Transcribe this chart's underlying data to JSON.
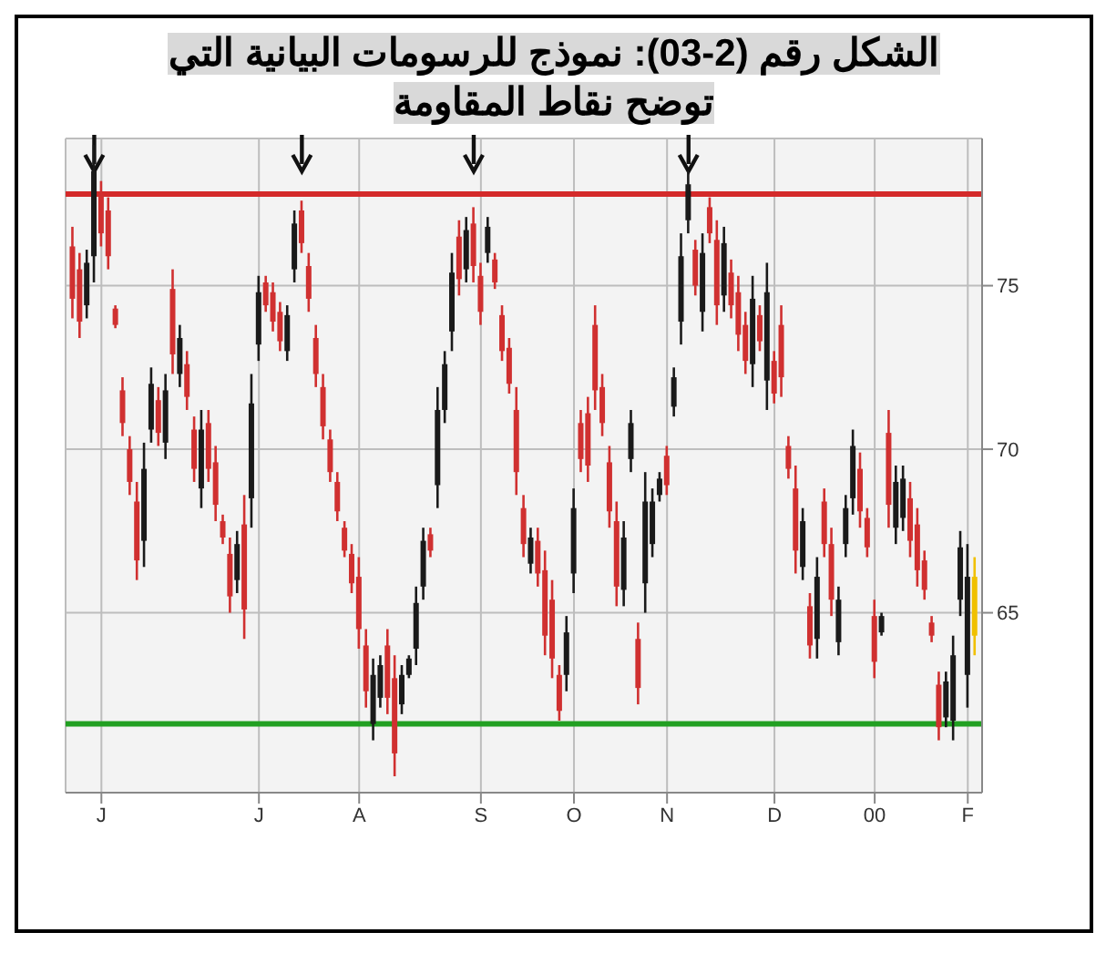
{
  "chart_data": {
    "type": "candlestick",
    "title": "الشكل رقم (2-03): نموذج للرسومات البيانية التي توضح نقاط المقاومة",
    "categories": [
      null,
      null,
      null,
      null,
      "J",
      null,
      null,
      null,
      null,
      null,
      null,
      null,
      null,
      null,
      null,
      null,
      null,
      null,
      null,
      null,
      null,
      null,
      null,
      null,
      null,
      null,
      "J",
      null,
      null,
      null,
      null,
      null,
      null,
      null,
      null,
      null,
      null,
      null,
      null,
      null,
      "A",
      null,
      null,
      null,
      null,
      null,
      null,
      null,
      null,
      null,
      null,
      null,
      null,
      null,
      null,
      null,
      null,
      "S",
      null,
      null,
      null,
      null,
      null,
      null,
      null,
      null,
      null,
      null,
      null,
      null,
      "O",
      null,
      null,
      null,
      null,
      null,
      null,
      null,
      null,
      null,
      null,
      null,
      null,
      "N",
      null,
      null,
      null,
      null,
      null,
      null,
      null,
      null,
      null,
      null,
      null,
      null,
      null,
      null,
      "D",
      null,
      null,
      null,
      null,
      null,
      null,
      null,
      null,
      null,
      null,
      null,
      null,
      null,
      "00",
      null,
      null,
      null,
      null,
      null,
      null,
      null,
      null,
      null,
      null,
      null,
      null,
      "F",
      null
    ],
    "ohlc": [
      [
        76.2,
        76.8,
        74.0,
        74.6
      ],
      [
        75.5,
        76.0,
        73.4,
        73.9
      ],
      [
        74.4,
        76.1,
        74.0,
        75.7
      ],
      [
        75.9,
        79.3,
        75.1,
        78.5
      ],
      [
        77.8,
        78.2,
        76.2,
        76.6
      ],
      [
        77.3,
        77.7,
        75.5,
        75.9
      ],
      [
        74.3,
        74.4,
        73.7,
        73.8
      ],
      [
        71.8,
        72.2,
        70.4,
        70.8
      ],
      [
        70.0,
        70.4,
        68.6,
        69.0
      ],
      [
        68.4,
        69.0,
        66.0,
        66.6
      ],
      [
        67.2,
        70.2,
        66.4,
        69.4
      ],
      [
        70.6,
        72.5,
        70.2,
        72.0
      ],
      [
        71.5,
        71.9,
        70.1,
        70.5
      ],
      [
        70.2,
        72.3,
        69.7,
        71.8
      ],
      [
        74.9,
        75.5,
        72.3,
        72.9
      ],
      [
        72.3,
        73.8,
        71.9,
        73.4
      ],
      [
        72.6,
        73.0,
        71.2,
        71.6
      ],
      [
        70.6,
        71.0,
        69.0,
        69.4
      ],
      [
        68.8,
        71.2,
        68.2,
        70.6
      ],
      [
        70.8,
        71.2,
        69.0,
        69.4
      ],
      [
        69.6,
        70.1,
        67.8,
        68.3
      ],
      [
        67.8,
        68.0,
        67.1,
        67.3
      ],
      [
        66.8,
        67.3,
        65.0,
        65.5
      ],
      [
        66.0,
        67.5,
        65.6,
        67.1
      ],
      [
        67.7,
        68.6,
        64.2,
        65.1
      ],
      [
        68.5,
        72.3,
        67.6,
        71.4
      ],
      [
        73.2,
        75.3,
        72.7,
        74.8
      ],
      [
        75.1,
        75.3,
        74.2,
        74.4
      ],
      [
        74.8,
        75.1,
        73.6,
        73.9
      ],
      [
        74.2,
        74.5,
        73.0,
        73.3
      ],
      [
        73.0,
        74.4,
        72.7,
        74.1
      ],
      [
        75.5,
        77.3,
        75.1,
        76.9
      ],
      [
        77.3,
        77.6,
        76.0,
        76.3
      ],
      [
        75.6,
        76.0,
        74.2,
        74.6
      ],
      [
        73.4,
        73.8,
        71.9,
        72.3
      ],
      [
        71.9,
        72.3,
        70.3,
        70.7
      ],
      [
        70.3,
        70.6,
        69.0,
        69.3
      ],
      [
        69.0,
        69.3,
        67.8,
        68.1
      ],
      [
        67.6,
        67.8,
        66.7,
        66.9
      ],
      [
        66.8,
        67.1,
        65.6,
        65.9
      ],
      [
        66.1,
        66.7,
        63.9,
        64.5
      ],
      [
        64.0,
        64.5,
        62.1,
        62.6
      ],
      [
        61.6,
        63.6,
        61.1,
        63.1
      ],
      [
        62.4,
        63.7,
        62.1,
        63.4
      ],
      [
        64.0,
        64.5,
        61.9,
        62.4
      ],
      [
        63.0,
        63.7,
        60.0,
        60.7
      ],
      [
        62.2,
        63.4,
        61.9,
        63.1
      ],
      [
        63.1,
        63.7,
        63.0,
        63.6
      ],
      [
        63.9,
        65.8,
        63.4,
        65.3
      ],
      [
        65.8,
        67.6,
        65.4,
        67.2
      ],
      [
        67.4,
        67.6,
        66.7,
        66.9
      ],
      [
        68.9,
        71.9,
        68.2,
        71.2
      ],
      [
        71.2,
        73.0,
        70.8,
        72.6
      ],
      [
        73.6,
        76.0,
        73.0,
        75.4
      ],
      [
        76.5,
        77.0,
        74.7,
        75.2
      ],
      [
        75.5,
        77.1,
        75.1,
        76.7
      ],
      [
        76.9,
        77.4,
        75.1,
        75.6
      ],
      [
        75.3,
        75.7,
        73.8,
        74.2
      ],
      [
        76.0,
        77.1,
        75.7,
        76.8
      ],
      [
        75.8,
        76.0,
        74.9,
        75.1
      ],
      [
        74.1,
        74.4,
        72.7,
        73.0
      ],
      [
        73.1,
        73.4,
        71.7,
        72.0
      ],
      [
        71.2,
        71.9,
        68.6,
        69.3
      ],
      [
        68.2,
        68.6,
        66.7,
        67.1
      ],
      [
        66.5,
        67.6,
        66.2,
        67.3
      ],
      [
        67.2,
        67.6,
        65.8,
        66.2
      ],
      [
        66.3,
        66.9,
        63.7,
        64.3
      ],
      [
        65.4,
        66.0,
        63.0,
        63.6
      ],
      [
        63.1,
        63.4,
        61.7,
        62.0
      ],
      [
        63.1,
        64.9,
        62.6,
        64.4
      ],
      [
        66.2,
        68.8,
        65.6,
        68.2
      ],
      [
        70.8,
        71.2,
        69.3,
        69.7
      ],
      [
        71.1,
        71.6,
        69.0,
        69.5
      ],
      [
        73.8,
        74.4,
        71.2,
        71.8
      ],
      [
        71.9,
        72.3,
        70.4,
        70.8
      ],
      [
        69.6,
        70.1,
        67.6,
        68.1
      ],
      [
        67.8,
        68.4,
        65.2,
        65.8
      ],
      [
        65.7,
        67.8,
        65.2,
        67.3
      ],
      [
        69.7,
        71.2,
        69.3,
        70.8
      ],
      [
        64.2,
        64.7,
        62.2,
        62.7
      ],
      [
        65.9,
        69.3,
        65.0,
        68.4
      ],
      [
        67.1,
        68.8,
        66.7,
        68.4
      ],
      [
        68.6,
        69.3,
        68.4,
        69.1
      ],
      [
        69.8,
        70.1,
        68.6,
        68.9
      ],
      [
        71.3,
        72.5,
        71.0,
        72.2
      ],
      [
        73.9,
        76.6,
        73.2,
        75.9
      ],
      [
        77.0,
        78.5,
        76.6,
        78.1
      ],
      [
        76.1,
        76.4,
        74.7,
        75.0
      ],
      [
        74.2,
        76.6,
        73.6,
        76.0
      ],
      [
        77.4,
        77.7,
        76.3,
        76.6
      ],
      [
        76.4,
        77.0,
        73.8,
        74.4
      ],
      [
        74.7,
        76.8,
        74.2,
        76.3
      ],
      [
        75.4,
        75.8,
        74.0,
        74.4
      ],
      [
        74.8,
        75.3,
        73.0,
        73.5
      ],
      [
        73.8,
        74.2,
        72.3,
        72.7
      ],
      [
        72.6,
        75.3,
        71.9,
        74.6
      ],
      [
        74.1,
        74.4,
        73.0,
        73.3
      ],
      [
        72.1,
        75.7,
        71.2,
        74.8
      ],
      [
        72.7,
        73.0,
        71.4,
        71.7
      ],
      [
        73.8,
        74.4,
        71.6,
        72.2
      ],
      [
        70.1,
        70.4,
        69.1,
        69.4
      ],
      [
        68.8,
        69.5,
        66.2,
        66.9
      ],
      [
        66.4,
        68.2,
        66.0,
        67.8
      ],
      [
        65.2,
        65.6,
        63.6,
        64.0
      ],
      [
        64.2,
        66.7,
        63.6,
        66.1
      ],
      [
        68.4,
        68.8,
        66.7,
        67.1
      ],
      [
        67.1,
        67.6,
        64.9,
        65.4
      ],
      [
        64.1,
        65.8,
        63.7,
        65.4
      ],
      [
        67.1,
        68.6,
        66.7,
        68.2
      ],
      [
        68.5,
        70.6,
        68.0,
        70.1
      ],
      [
        69.4,
        69.9,
        67.6,
        68.1
      ],
      [
        67.9,
        68.2,
        66.7,
        67.0
      ],
      [
        64.9,
        65.4,
        63.0,
        63.5
      ],
      [
        64.4,
        65.0,
        64.3,
        64.9
      ],
      [
        70.5,
        71.2,
        67.6,
        68.3
      ],
      [
        67.6,
        69.5,
        67.1,
        69.0
      ],
      [
        67.9,
        69.5,
        67.5,
        69.1
      ],
      [
        68.5,
        69.0,
        66.7,
        67.2
      ],
      [
        67.7,
        68.2,
        65.8,
        66.3
      ],
      [
        66.6,
        66.9,
        65.4,
        65.7
      ],
      [
        64.7,
        64.9,
        64.1,
        64.3
      ],
      [
        62.8,
        63.2,
        61.1,
        61.5
      ],
      [
        61.8,
        63.2,
        61.5,
        62.9
      ],
      [
        61.7,
        64.3,
        61.1,
        63.7
      ],
      [
        65.4,
        67.5,
        64.9,
        67.0
      ],
      [
        63.1,
        67.1,
        62.1,
        66.1
      ],
      [
        66.1,
        66.7,
        63.7,
        64.3
      ]
    ],
    "colors": [
      "#d03030",
      "#d03030",
      "#1a1a1a",
      "#1a1a1a",
      "#d03030",
      "#d03030",
      "#d03030",
      "#d03030",
      "#d03030",
      "#d03030",
      "#1a1a1a",
      "#1a1a1a",
      "#d03030",
      "#1a1a1a",
      "#d03030",
      "#1a1a1a",
      "#d03030",
      "#d03030",
      "#1a1a1a",
      "#d03030",
      "#d03030",
      "#d03030",
      "#d03030",
      "#1a1a1a",
      "#d03030",
      "#1a1a1a",
      "#1a1a1a",
      "#d03030",
      "#d03030",
      "#d03030",
      "#1a1a1a",
      "#1a1a1a",
      "#d03030",
      "#d03030",
      "#d03030",
      "#d03030",
      "#d03030",
      "#d03030",
      "#d03030",
      "#d03030",
      "#d03030",
      "#d03030",
      "#1a1a1a",
      "#1a1a1a",
      "#d03030",
      "#d03030",
      "#1a1a1a",
      "#1a1a1a",
      "#1a1a1a",
      "#1a1a1a",
      "#d03030",
      "#1a1a1a",
      "#1a1a1a",
      "#1a1a1a",
      "#d03030",
      "#1a1a1a",
      "#d03030",
      "#d03030",
      "#1a1a1a",
      "#d03030",
      "#d03030",
      "#d03030",
      "#d03030",
      "#d03030",
      "#1a1a1a",
      "#d03030",
      "#d03030",
      "#d03030",
      "#d03030",
      "#1a1a1a",
      "#1a1a1a",
      "#d03030",
      "#d03030",
      "#d03030",
      "#d03030",
      "#d03030",
      "#d03030",
      "#1a1a1a",
      "#1a1a1a",
      "#d03030",
      "#1a1a1a",
      "#1a1a1a",
      "#1a1a1a",
      "#d03030",
      "#1a1a1a",
      "#1a1a1a",
      "#1a1a1a",
      "#d03030",
      "#1a1a1a",
      "#d03030",
      "#d03030",
      "#1a1a1a",
      "#d03030",
      "#d03030",
      "#d03030",
      "#1a1a1a",
      "#d03030",
      "#1a1a1a",
      "#d03030",
      "#d03030",
      "#d03030",
      "#d03030",
      "#1a1a1a",
      "#d03030",
      "#1a1a1a",
      "#d03030",
      "#d03030",
      "#1a1a1a",
      "#1a1a1a",
      "#1a1a1a",
      "#d03030",
      "#d03030",
      "#d03030",
      "#1a1a1a",
      "#d03030",
      "#1a1a1a",
      "#1a1a1a",
      "#d03030",
      "#d03030",
      "#d03030",
      "#d03030",
      "#d03030",
      "#1a1a1a",
      "#1a1a1a",
      "#1a1a1a",
      "#1a1a1a",
      "#f0c000"
    ],
    "ylim": [
      59.5,
      79.5
    ],
    "yticks": [
      65,
      70,
      75
    ],
    "grid": true,
    "ref_lines": [
      {
        "axis": "y",
        "value": 77.8,
        "label": null,
        "color": "#d42a2a"
      },
      {
        "axis": "y",
        "value": 61.6,
        "label": null,
        "color": "#22a022"
      }
    ]
  }
}
